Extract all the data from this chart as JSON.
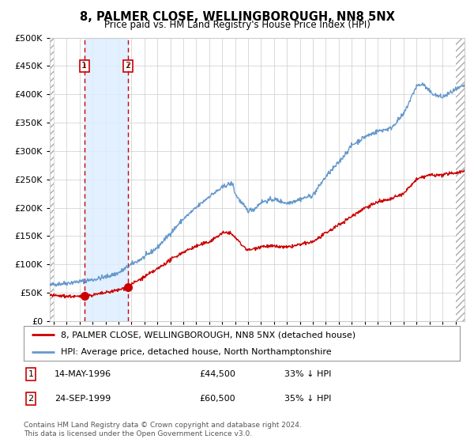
{
  "title": "8, PALMER CLOSE, WELLINGBOROUGH, NN8 5NX",
  "subtitle": "Price paid vs. HM Land Registry's House Price Index (HPI)",
  "legend_line1": "8, PALMER CLOSE, WELLINGBOROUGH, NN8 5NX (detached house)",
  "legend_line2": "HPI: Average price, detached house, North Northamptonshire",
  "transaction1_date": "14-MAY-1996",
  "transaction1_price": "£44,500",
  "transaction1_hpi": "33% ↓ HPI",
  "transaction2_date": "24-SEP-1999",
  "transaction2_price": "£60,500",
  "transaction2_hpi": "35% ↓ HPI",
  "footer": "Contains HM Land Registry data © Crown copyright and database right 2024.\nThis data is licensed under the Open Government Licence v3.0.",
  "red_color": "#cc0000",
  "blue_color": "#6699cc",
  "hatch_color": "#aaaaaa",
  "shade_color": "#ddeeff",
  "grid_color": "#cccccc",
  "transaction1_year": 1996.37,
  "transaction2_year": 1999.73,
  "transaction1_price_val": 44500,
  "transaction2_price_val": 60500,
  "ylim_max": 500000,
  "xlim_min": 1993.7,
  "xlim_max": 2025.7,
  "background_color": "#ffffff"
}
